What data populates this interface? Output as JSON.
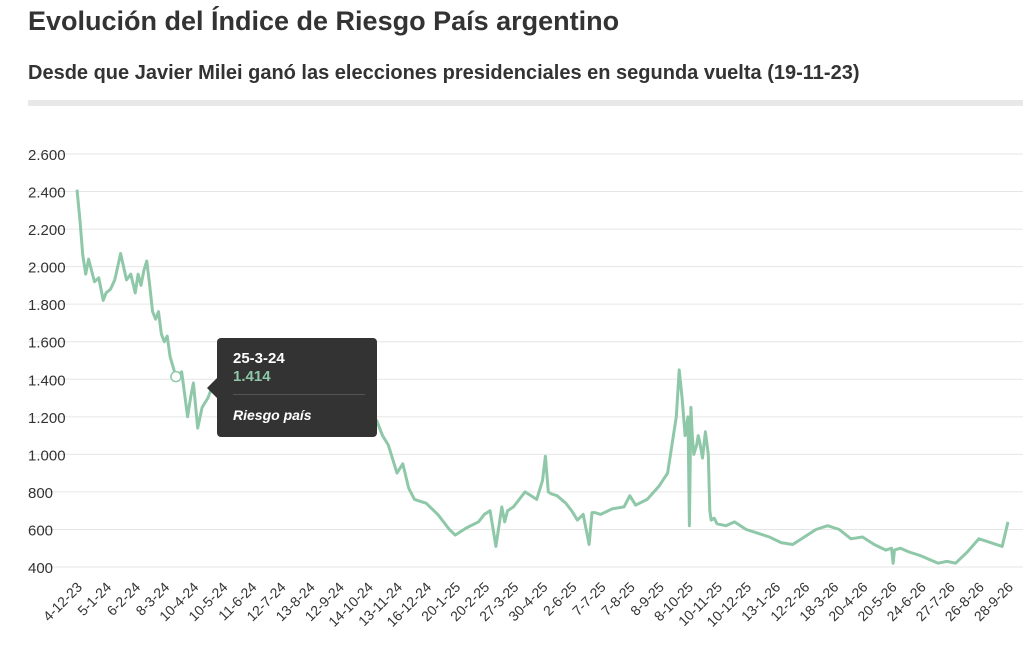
{
  "chart_data": {
    "type": "line",
    "title": "Evolución del Índice de Riesgo País argentino",
    "subtitle": "Desde que Javier Milei ganó las elecciones presidenciales en segunda vuelta (19-11-23)",
    "xlabel": "",
    "ylabel": "",
    "ylim": [
      300,
      2600
    ],
    "yticks": [
      400,
      600,
      800,
      1000,
      1200,
      1400,
      1600,
      1800,
      2000,
      2200,
      2400,
      2600
    ],
    "ytick_labels": [
      "400",
      "600",
      "800",
      "1.000",
      "1.200",
      "1.400",
      "1.600",
      "1.800",
      "2.000",
      "2.200",
      "2.400",
      "2.600"
    ],
    "xtick_labels": [
      "4-12-23",
      "5-1-24",
      "6-2-24",
      "8-3-24",
      "10-4-24",
      "10-5-24",
      "11-6-24",
      "12-7-24",
      "13-8-24",
      "12-9-24",
      "14-10-24",
      "13-11-24",
      "16-12-24",
      "20-1-25",
      "20-2-25",
      "27-3-25",
      "30-4-25",
      "2-6-25",
      "7-7-25",
      "7-8-25",
      "8-9-25",
      "8-10-25",
      "10-11-25",
      "10-12-25",
      "13-1-26",
      "12-2-26",
      "18-3-26",
      "20-4-26",
      "20-5-26",
      "24-6-26",
      "27-7-26",
      "26-8-26",
      "28-9-26"
    ],
    "grid": true,
    "legend": "none",
    "color": "#8fc8a8",
    "series": [
      {
        "name": "Riesgo país",
        "x_index": [
          0,
          0.1,
          0.2,
          0.3,
          0.4,
          0.5,
          0.6,
          0.75,
          0.9,
          1.0,
          1.15,
          1.3,
          1.5,
          1.7,
          1.85,
          2.0,
          2.1,
          2.2,
          2.3,
          2.4,
          2.5,
          2.6,
          2.7,
          2.8,
          2.9,
          3.0,
          3.1,
          3.2,
          3.4,
          3.6,
          3.8,
          3.9,
          4.0,
          4.15,
          4.3,
          4.5,
          4.7,
          10.3,
          10.5,
          10.7,
          11.0,
          11.2,
          11.4,
          11.6,
          11.8,
          12.0,
          12.4,
          12.8,
          13.0,
          13.4,
          13.8,
          14.0,
          14.2,
          14.4,
          14.6,
          14.7,
          14.8,
          15.0,
          15.4,
          15.8,
          16.0,
          16.1,
          16.2,
          16.3,
          16.5,
          16.8,
          17.0,
          17.2,
          17.4,
          17.6,
          17.7,
          17.8,
          18.0,
          18.4,
          18.8,
          19.0,
          19.2,
          19.6,
          20.0,
          20.3,
          20.5,
          20.6,
          20.7,
          20.8,
          20.9,
          21.0,
          21.05,
          21.1,
          21.15,
          21.2,
          21.3,
          21.35,
          21.4,
          21.5,
          21.6,
          21.7,
          21.75,
          21.8,
          21.9,
          22.0,
          22.3,
          22.6,
          23.0,
          23.4,
          23.8,
          24.2,
          24.6,
          25.0,
          25.4,
          25.8,
          26.2,
          26.6,
          27.0,
          27.4,
          27.8,
          28.0,
          28.05,
          28.1,
          28.3,
          28.6,
          29.0,
          29.3,
          29.6,
          29.9,
          30.2,
          30.6,
          31.0,
          31.4,
          31.8,
          32.0
        ],
        "values": [
          2410,
          2250,
          2060,
          1960,
          2040,
          1980,
          1920,
          1940,
          1820,
          1860,
          1880,
          1930,
          2070,
          1930,
          1960,
          1860,
          1960,
          1900,
          1980,
          2030,
          1900,
          1760,
          1720,
          1760,
          1640,
          1600,
          1630,
          1520,
          1414,
          1440,
          1200,
          1300,
          1380,
          1140,
          1250,
          1300,
          1380,
          1180,
          1100,
          1050,
          900,
          950,
          820,
          760,
          750,
          740,
          680,
          600,
          570,
          610,
          640,
          680,
          700,
          510,
          720,
          640,
          700,
          720,
          800,
          760,
          860,
          990,
          800,
          790,
          780,
          740,
          700,
          650,
          680,
          520,
          690,
          690,
          680,
          710,
          720,
          780,
          730,
          760,
          830,
          900,
          1100,
          1200,
          1450,
          1300,
          1100,
          1200,
          620,
          1250,
          1100,
          1000,
          1050,
          1100,
          1070,
          980,
          1120,
          1000,
          700,
          650,
          660,
          630,
          620,
          640,
          600,
          580,
          560,
          530,
          520,
          560,
          600,
          620,
          600,
          550,
          560,
          520,
          490,
          500,
          420,
          490,
          500,
          480,
          460,
          440,
          420,
          430,
          420,
          480,
          550,
          530,
          510,
          640
        ]
      }
    ],
    "highlight": {
      "date": "25-3-24",
      "value_label": "1.414",
      "series_label": "Riesgo país",
      "x_index": 3.4,
      "value": 1414
    }
  }
}
